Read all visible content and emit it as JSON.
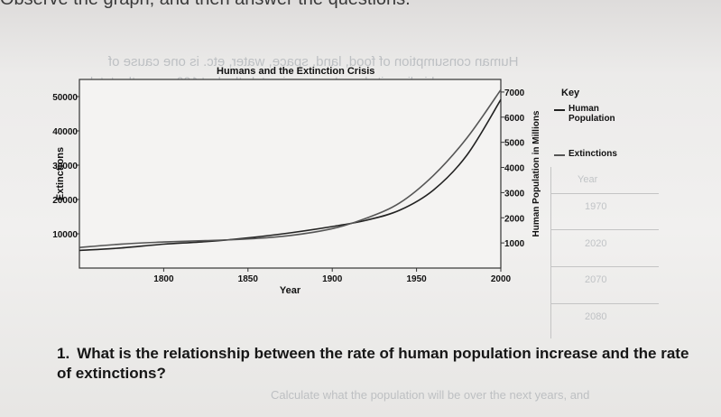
{
  "header": {
    "instruction_fragment": "Observe the graph, and then answer the questions."
  },
  "chart_data": {
    "type": "line",
    "title": "Humans and the Extinction Crisis",
    "xlabel": "Year",
    "ylabel_left": "Extinctions",
    "ylabel_right": "Human Population in Millions",
    "x": [
      1750,
      1775,
      1800,
      1825,
      1850,
      1875,
      1900,
      1920,
      1940,
      1960,
      1980,
      2000
    ],
    "x_ticks": [
      1800,
      1850,
      1900,
      1950,
      2000
    ],
    "left_ticks": [
      10000,
      20000,
      30000,
      40000,
      50000
    ],
    "right_ticks": [
      1000,
      2000,
      3000,
      4000,
      5000,
      6000,
      7000
    ],
    "xlim": [
      1750,
      2000
    ],
    "ylim_left": [
      0,
      55000
    ],
    "ylim_right": [
      0,
      7500
    ],
    "series": [
      {
        "name": "Human Population",
        "axis": "right",
        "x": [
          1750,
          1775,
          1800,
          1825,
          1850,
          1875,
          1900,
          1920,
          1940,
          1960,
          1980,
          2000
        ],
        "values": [
          700,
          800,
          950,
          1050,
          1200,
          1400,
          1650,
          1900,
          2300,
          3100,
          4500,
          6700
        ]
      },
      {
        "name": "Extinctions",
        "axis": "left",
        "x": [
          1750,
          1775,
          1800,
          1825,
          1850,
          1875,
          1900,
          1920,
          1940,
          1960,
          1980,
          2000
        ],
        "values": [
          6000,
          7000,
          7600,
          8000,
          8500,
          9500,
          11500,
          14500,
          19000,
          27000,
          38000,
          52000
        ]
      }
    ],
    "legend": {
      "title": "Key",
      "placement": "right",
      "entries": [
        {
          "label": "Human Population",
          "color": "#222222"
        },
        {
          "label": "Extinctions",
          "color": "#555555"
        }
      ]
    },
    "grid": false
  },
  "question": {
    "number": "1.",
    "text": "What is the relationship between the rate of human population increase and the rate of extinctions?"
  },
  "colors": {
    "ink": "#161616",
    "paper": "#efeeed",
    "ghost": "#9aa0a6"
  }
}
